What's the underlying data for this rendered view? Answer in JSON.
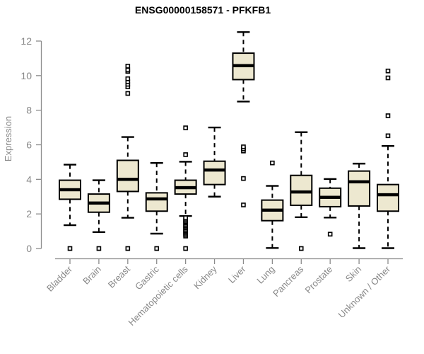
{
  "chart_data": {
    "type": "box",
    "title": "ENSG00000158571 - PFKFB1",
    "xlabel": "",
    "ylabel": "Expression",
    "ylim": [
      0,
      12
    ],
    "yticks": [
      0,
      2,
      4,
      6,
      8,
      10,
      12
    ],
    "grid": false,
    "legend": "none",
    "box_fill": "#EDE8D0",
    "box_stroke": "#000000",
    "axis_color": "#8C8C8C",
    "tick_label_color": "#888888",
    "title_color": "#000000",
    "categories": [
      {
        "label": "Bladder",
        "low": 1.35,
        "q1": 2.85,
        "median": 3.4,
        "q3": 3.95,
        "high": 4.85,
        "outliers": [
          0
        ]
      },
      {
        "label": "Brain",
        "low": 0.95,
        "q1": 2.1,
        "median": 2.63,
        "q3": 3.15,
        "high": 3.95,
        "outliers": [
          0
        ]
      },
      {
        "label": "Breast",
        "low": 1.78,
        "q1": 3.3,
        "median": 4.0,
        "q3": 5.1,
        "high": 6.45,
        "outliers": [
          0,
          8.97,
          9.35,
          9.5,
          9.65,
          9.82,
          10.25,
          10.33,
          10.55
        ]
      },
      {
        "label": "Gastric",
        "low": 0.86,
        "q1": 2.16,
        "median": 2.87,
        "q3": 3.22,
        "high": 4.95,
        "outliers": [
          0
        ]
      },
      {
        "label": "Hematopoietic cells",
        "low": 1.88,
        "q1": 3.15,
        "median": 3.52,
        "q3": 3.95,
        "high": 5.02,
        "outliers": [
          0,
          0.72,
          0.8,
          0.88,
          0.95,
          1.02,
          1.1,
          1.18,
          1.25,
          1.32,
          1.4,
          1.48,
          1.55,
          1.62,
          1.7,
          1.78,
          5.43,
          6.98
        ]
      },
      {
        "label": "Kidney",
        "low": 3.0,
        "q1": 3.7,
        "median": 4.54,
        "q3": 5.05,
        "high": 7.0,
        "outliers": []
      },
      {
        "label": "Liver",
        "low": 8.5,
        "q1": 9.77,
        "median": 10.58,
        "q3": 11.3,
        "high": 12.52,
        "outliers": [
          2.52,
          4.05,
          5.64,
          5.76,
          5.88
        ]
      },
      {
        "label": "Lung",
        "low": 0.03,
        "q1": 1.61,
        "median": 2.22,
        "q3": 2.8,
        "high": 3.62,
        "outliers": [
          4.95
        ]
      },
      {
        "label": "Pancreas",
        "low": 1.81,
        "q1": 2.5,
        "median": 3.27,
        "q3": 4.23,
        "high": 6.73,
        "outliers": [
          0
        ]
      },
      {
        "label": "Prostate",
        "low": 1.79,
        "q1": 2.42,
        "median": 2.96,
        "q3": 3.49,
        "high": 4.02,
        "outliers": [
          0.83
        ]
      },
      {
        "label": "Skin",
        "low": 0.02,
        "q1": 2.46,
        "median": 3.86,
        "q3": 4.48,
        "high": 4.91,
        "outliers": []
      },
      {
        "label": "Unknown / Other",
        "low": 0.02,
        "q1": 2.16,
        "median": 3.11,
        "q3": 3.7,
        "high": 5.93,
        "outliers": [
          6.52,
          7.68,
          9.87,
          10.27
        ]
      }
    ]
  }
}
